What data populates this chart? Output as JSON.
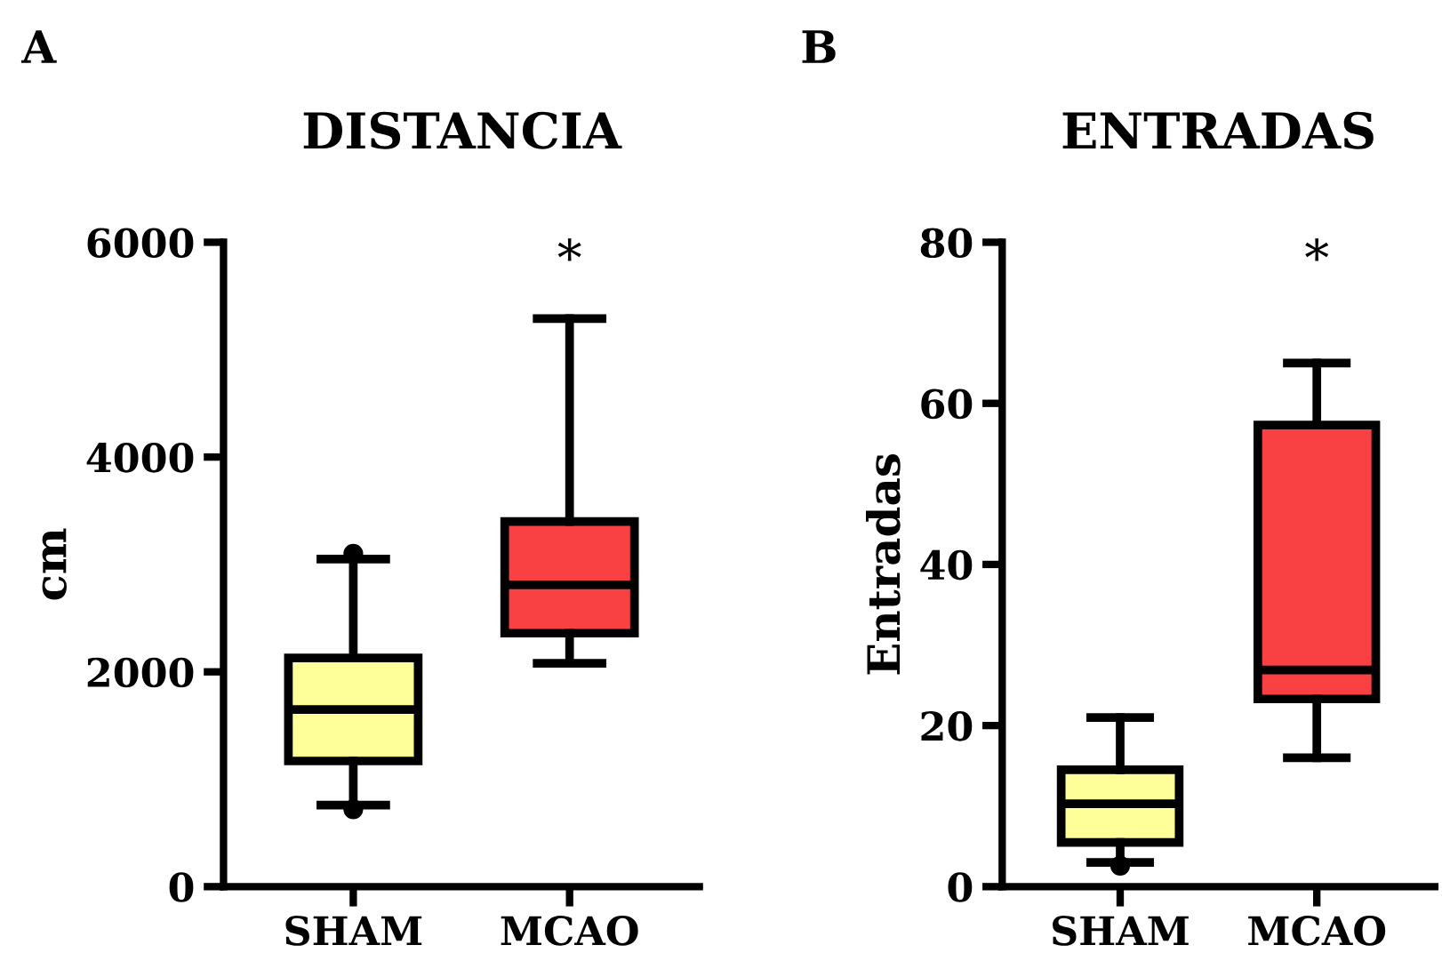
{
  "chart_data": [
    {
      "type": "box",
      "title": "DISTANCIA",
      "ylabel": "cm",
      "categories": [
        "SHAM",
        "MCAO"
      ],
      "colors": [
        "#ffff99",
        "#f94144"
      ],
      "boxes": [
        {
          "low": 760,
          "q1": 1170,
          "median": 1650,
          "q3": 2130,
          "high": 3050,
          "outliers": [
            3100,
            720
          ]
        },
        {
          "low": 2080,
          "q1": 2360,
          "median": 2810,
          "q3": 3400,
          "high": 5290
        }
      ],
      "ylim": [
        0,
        6000
      ],
      "yticks": [
        0,
        2000,
        4000,
        6000
      ],
      "grid": false,
      "legend": false,
      "annotations": [
        "A",
        "*"
      ]
    },
    {
      "type": "box",
      "title": "ENTRADAS",
      "ylabel": "Entradas",
      "categories": [
        "SHAM",
        "MCAO"
      ],
      "colors": [
        "#ffff99",
        "#f94144"
      ],
      "boxes": [
        {
          "low": 3,
          "q1": 5.5,
          "median": 10.3,
          "q3": 14.5,
          "high": 21,
          "outliers": [
            2.6
          ]
        },
        {
          "low": 16,
          "q1": 23.3,
          "median": 26.9,
          "q3": 57.3,
          "high": 65
        }
      ],
      "ylim": [
        0,
        80
      ],
      "yticks": [
        0,
        20,
        40,
        60,
        80
      ],
      "grid": false,
      "legend": false,
      "annotations": [
        "B",
        "*"
      ]
    }
  ]
}
